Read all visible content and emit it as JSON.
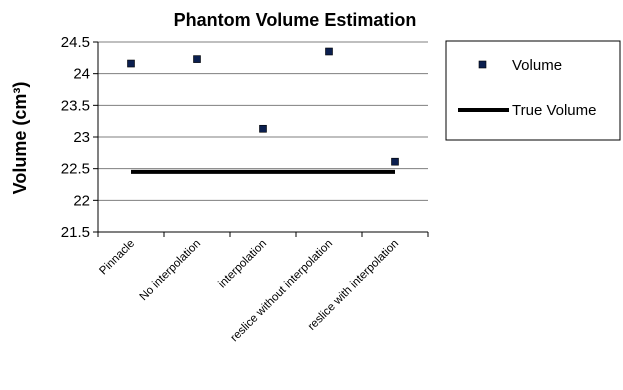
{
  "chart_data": {
    "type": "scatter",
    "title": "Phantom Volume Estimation",
    "xlabel": "",
    "ylabel": "Volume (cm³)",
    "ylim": [
      21.5,
      24.5
    ],
    "yticks": [
      "21.5",
      "22",
      "22.5",
      "23",
      "23.5",
      "24",
      "24.5"
    ],
    "categories": [
      "Pinnacle",
      "No interpolation",
      "interpolation",
      "reslice without interpolation",
      "reslice with interpolation"
    ],
    "series": [
      {
        "name": "Volume",
        "type": "scatter",
        "values": [
          24.16,
          24.23,
          23.13,
          24.35,
          22.61
        ],
        "color": "#0b1f4f"
      },
      {
        "name": "True Volume",
        "type": "line",
        "values": [
          22.45,
          22.45,
          22.45,
          22.45,
          22.45
        ],
        "color": "#000000"
      }
    ],
    "grid": true,
    "legend": "right"
  }
}
